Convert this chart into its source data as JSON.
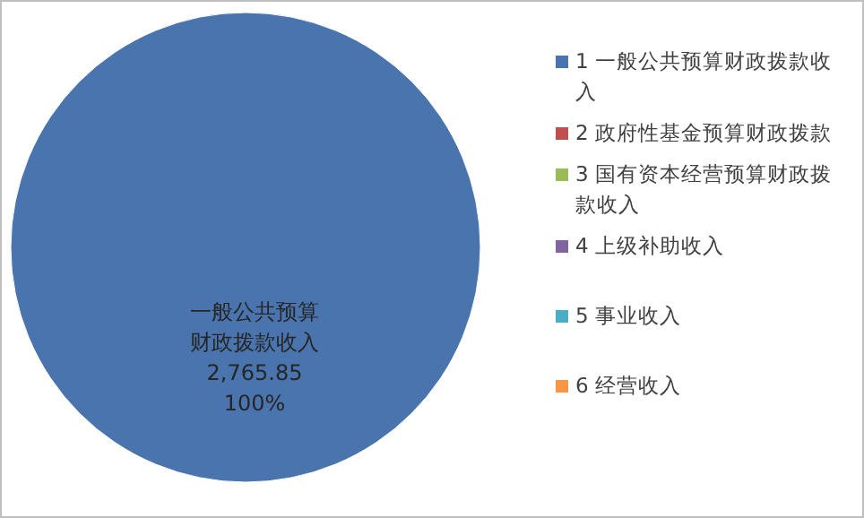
{
  "chart_data": {
    "type": "pie",
    "categories": [
      "1 一般公共预算财政拨款收入",
      "2 政府性基金预算财政拨款",
      "3 国有资本经营预算财政拨款收入",
      "4 上级补助收入",
      "5 事业收入",
      "6 经营收入"
    ],
    "values": [
      2765.85,
      0,
      0,
      0,
      0,
      0
    ],
    "colors": [
      "#4a74ad",
      "#c0504d",
      "#9bbb59",
      "#8064a2",
      "#4bacc6",
      "#f79646"
    ],
    "value_labels": [
      "一般公共预算财政拨款收入\n2,765.85\n100%",
      null,
      null,
      null,
      null,
      null
    ],
    "legend": "right"
  }
}
